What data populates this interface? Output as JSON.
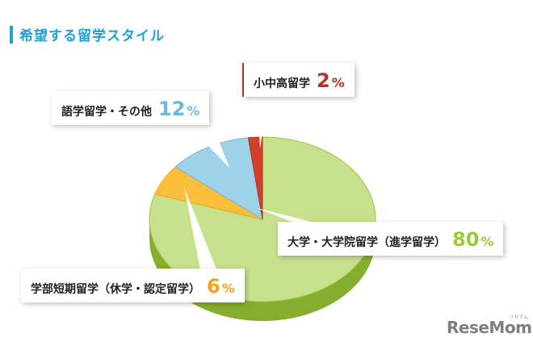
{
  "header": {
    "title": "希望する留学スタイル"
  },
  "colors": {
    "accent": "#1ea0dc"
  },
  "chart_data": {
    "type": "pie",
    "title": "希望する留学スタイル",
    "slices": [
      {
        "label": "大学・大学院留学（進学留学）",
        "value": 80,
        "display": "80",
        "color": "#9cc83c",
        "light": "#c6e08c",
        "dark": "#86ae2e"
      },
      {
        "label": "学部短期留学（休学・認定留学）",
        "value": 6,
        "display": "6",
        "color": "#f3a41a",
        "light": "#fbbf3a",
        "dark": "#d48c10"
      },
      {
        "label": "語学留学・その他",
        "value": 12,
        "display": "12",
        "color": "#6bb9d8",
        "light": "#9dd2e8",
        "dark": "#4d9fc2"
      },
      {
        "label": "小中高留学",
        "value": 2,
        "display": "2",
        "color": "#b83222",
        "light": "#d0402a",
        "dark": "#8f2318"
      }
    ],
    "unit": "%"
  },
  "watermark": {
    "brand": "ReseMom",
    "sub": "リセマム"
  }
}
